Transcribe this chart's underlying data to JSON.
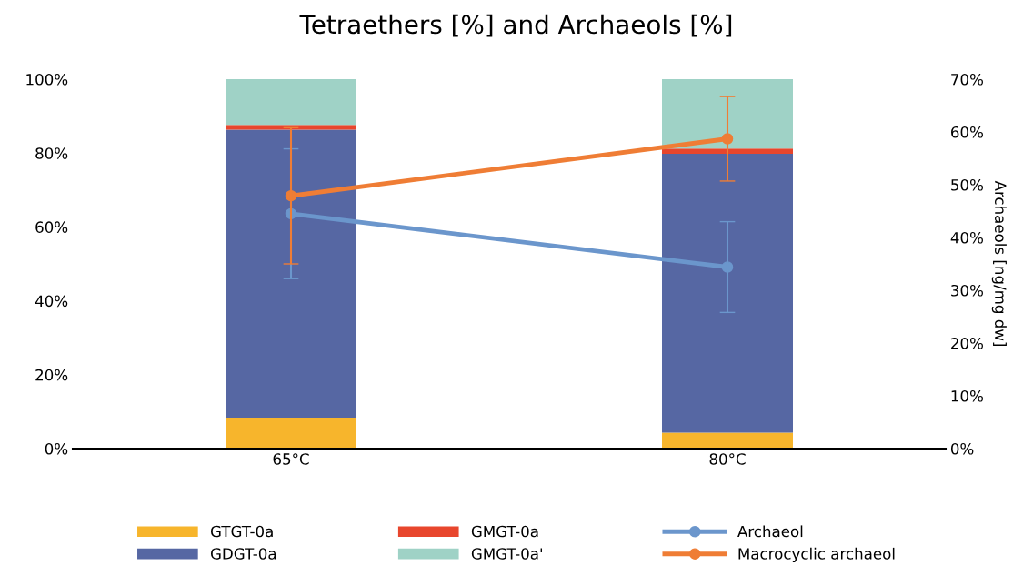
{
  "chart_data": {
    "type": "bar",
    "title": "Tetraethers [%] and Archaeols [%]",
    "y2label": "Archaeols [ng/mg dw]",
    "categories": [
      "65°C",
      "80°C"
    ],
    "stacked": true,
    "series": [
      {
        "name": "GTGT-0a",
        "color": "#f7b52c",
        "values": [
          8.4,
          4.3
        ]
      },
      {
        "name": "GDGT-0a",
        "color": "#5667a3",
        "values": [
          77.9,
          75.5
        ]
      },
      {
        "name": "GMGT-0a",
        "color": "#e8462d",
        "values": [
          1.3,
          1.4
        ]
      },
      {
        "name": "GMGT-0a'",
        "color": "#9fd2c6",
        "values": [
          12.4,
          18.8
        ]
      },
      {
        "name": "Archaeol",
        "type": "line",
        "axis": "y2",
        "color": "#6b96cc",
        "marker": "circle",
        "values": [
          44.5,
          34.4
        ],
        "errors": [
          12.3,
          8.6
        ]
      },
      {
        "name": "Macrocyclic archaeol",
        "type": "line",
        "axis": "y2",
        "color": "#ef7d35",
        "marker": "circle",
        "values": [
          47.9,
          58.7
        ],
        "errors": [
          12.9,
          8.0
        ]
      }
    ],
    "ylim": [
      0,
      100
    ],
    "yticks": [
      {
        "value": 0,
        "label": "0%"
      },
      {
        "value": 20,
        "label": "20%"
      },
      {
        "value": 40,
        "label": "40%"
      },
      {
        "value": 60,
        "label": "60%"
      },
      {
        "value": 80,
        "label": "80%"
      },
      {
        "value": 100,
        "label": "100%"
      }
    ],
    "y2lim": [
      0,
      70
    ],
    "y2ticks": [
      {
        "value": 0,
        "label": "0%"
      },
      {
        "value": 10,
        "label": "10%"
      },
      {
        "value": 20,
        "label": "20%"
      },
      {
        "value": 30,
        "label": "30%"
      },
      {
        "value": 40,
        "label": "40%"
      },
      {
        "value": 50,
        "label": "50%"
      },
      {
        "value": 60,
        "label": "60%"
      },
      {
        "value": 70,
        "label": "70%"
      }
    ],
    "grid": false,
    "legend": "bottom"
  }
}
